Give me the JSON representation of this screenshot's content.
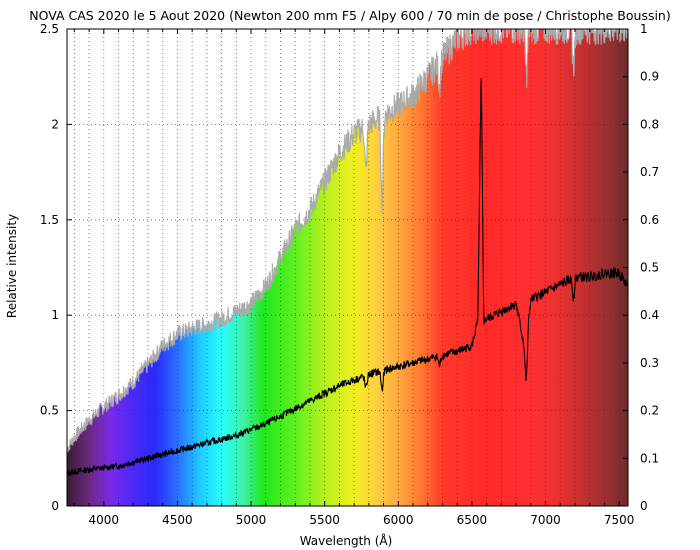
{
  "chart_data": {
    "type": "line",
    "title": "NOVA CAS 2020 le 5 Aout 2020 (Newton 200 mm F5 / Alpy 600 / 70 min de pose / Christophe Boussin)",
    "xlabel": "Wavelength (Å)",
    "ylabel": "Relative intensity",
    "xlim": [
      3750,
      7560
    ],
    "ylim": [
      0,
      2.5
    ],
    "y2lim": [
      0,
      1
    ],
    "x_ticks": [
      4000,
      4500,
      5000,
      5500,
      6000,
      6500,
      7000,
      7500
    ],
    "y_ticks": [
      0,
      0.5,
      1,
      1.5,
      2,
      2.5
    ],
    "y2_ticks": [
      0,
      0.1,
      0.2,
      0.3,
      0.4,
      0.5,
      0.6,
      0.7,
      0.8,
      0.9,
      1
    ],
    "grid": true,
    "background": "visible spectrum color gradient",
    "series": [
      {
        "color": "#000000",
        "x": [
          3750,
          3800,
          3900,
          4000,
          4100,
          4200,
          4300,
          4400,
          4500,
          4600,
          4700,
          4800,
          4900,
          5000,
          5100,
          5200,
          5300,
          5400,
          5500,
          5600,
          5700,
          5800,
          5900,
          6000,
          6100,
          6200,
          6300,
          6400,
          6500,
          6540,
          6563,
          6580,
          6600,
          6700,
          6800,
          6860,
          6900,
          7000,
          7100,
          7200,
          7300,
          7400,
          7500,
          7560
        ],
        "y": [
          0.17,
          0.18,
          0.19,
          0.2,
          0.21,
          0.23,
          0.25,
          0.27,
          0.29,
          0.31,
          0.33,
          0.35,
          0.37,
          0.4,
          0.43,
          0.47,
          0.51,
          0.55,
          0.59,
          0.63,
          0.66,
          0.69,
          0.71,
          0.73,
          0.75,
          0.77,
          0.79,
          0.81,
          0.84,
          0.97,
          2.3,
          0.97,
          0.98,
          1.02,
          1.06,
          0.82,
          1.08,
          1.12,
          1.16,
          1.2,
          1.2,
          1.22,
          1.22,
          1.15
        ],
        "absorption": [
          [
            5780,
            0.07
          ],
          [
            5890,
            0.1
          ],
          [
            6280,
            0.05
          ],
          [
            6870,
            0.22
          ],
          [
            7190,
            0.1
          ]
        ]
      },
      {
        "color": "#aaaaaa",
        "x": [
          3750,
          3800,
          3900,
          4000,
          4100,
          4200,
          4300,
          4400,
          4500,
          4600,
          4700,
          4800,
          4900,
          5000,
          5100,
          5200,
          5300,
          5400,
          5500,
          5600,
          5700,
          5800,
          5900,
          6000,
          6100,
          6200,
          6300,
          6400,
          6500,
          6600,
          6700,
          6800,
          6900,
          7000,
          7100,
          7200,
          7300,
          7400,
          7500,
          7560
        ],
        "y": [
          0.3,
          0.36,
          0.45,
          0.52,
          0.58,
          0.65,
          0.74,
          0.84,
          0.9,
          0.93,
          0.95,
          0.98,
          1.02,
          1.06,
          1.15,
          1.3,
          1.45,
          1.55,
          1.7,
          1.85,
          1.95,
          2.0,
          2.05,
          2.1,
          2.15,
          2.25,
          2.35,
          2.45,
          2.5,
          2.5,
          2.5,
          2.5,
          2.5,
          2.5,
          2.5,
          2.5,
          2.5,
          2.5,
          2.5,
          2.5
        ],
        "absorption": [
          [
            5780,
            0.25
          ],
          [
            5890,
            0.45
          ],
          [
            6280,
            0.12
          ],
          [
            6870,
            0.25
          ],
          [
            7190,
            0.2
          ]
        ]
      }
    ]
  }
}
